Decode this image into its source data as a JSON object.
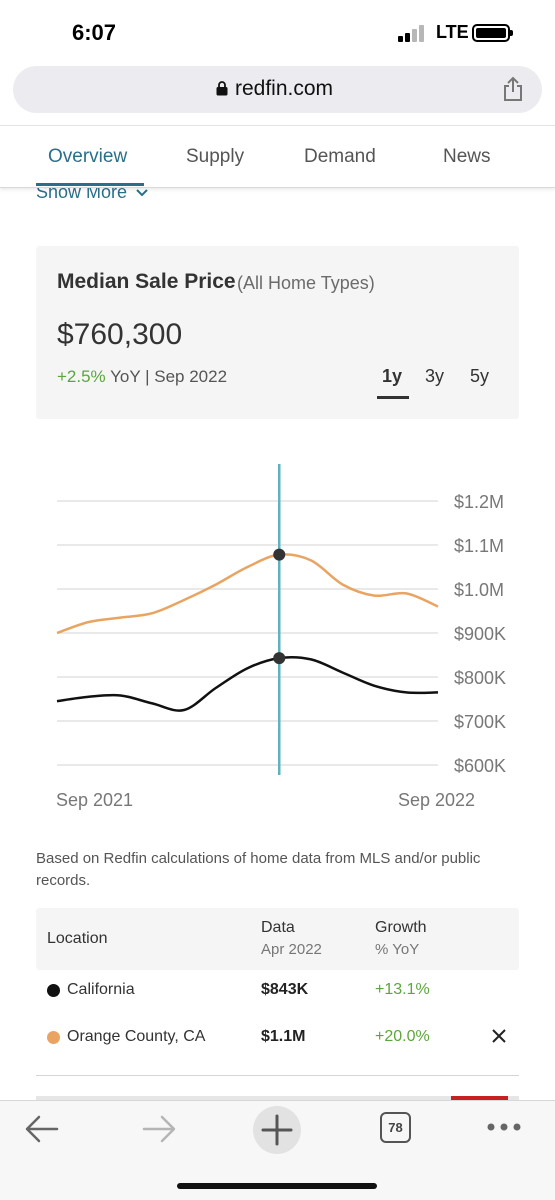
{
  "status_bar": {
    "time": "6:07",
    "network": "LTE"
  },
  "browser": {
    "url": "redfin.com",
    "tab_count": "78"
  },
  "tabs": [
    {
      "label": "Overview",
      "active": true
    },
    {
      "label": "Supply",
      "active": false
    },
    {
      "label": "Demand",
      "active": false
    },
    {
      "label": "News",
      "active": false
    }
  ],
  "show_more": "Show More",
  "summary": {
    "title": "Median Sale Price",
    "subtitle": "(All Home Types)",
    "price": "$760,300",
    "yoy_pct": "+2.5%",
    "yoy_rest": " YoY | Sep 2022",
    "ranges": [
      "1y",
      "3y",
      "5y"
    ],
    "active_range": "1y"
  },
  "chart_data": {
    "type": "line",
    "x_start_label": "Sep 2021",
    "x_end_label": "Sep 2022",
    "y_tick_labels": [
      "$1.2M",
      "$1.1M",
      "$1.0M",
      "$900K",
      "$800K",
      "$700K",
      "$600K"
    ],
    "ylim": [
      600000,
      1200000
    ],
    "grid": true,
    "highlight_index": 7,
    "series": [
      {
        "name": "Orange County, CA",
        "color": "#e9a462",
        "values": [
          900000,
          925000,
          935000,
          945000,
          975000,
          1010000,
          1050000,
          1078000,
          1065000,
          1010000,
          985000,
          990000,
          960000
        ]
      },
      {
        "name": "California",
        "color": "#111111",
        "values": [
          745000,
          755000,
          758000,
          740000,
          725000,
          775000,
          820000,
          843000,
          840000,
          810000,
          780000,
          765000,
          765000
        ]
      }
    ]
  },
  "source_note": "Based on Redfin calculations of home data from MLS and/or public records.",
  "table": {
    "headers": {
      "location": "Location",
      "data": "Data",
      "data_sub": "Apr 2022",
      "growth": "Growth",
      "growth_sub": "% YoY"
    },
    "rows": [
      {
        "location": "California",
        "value": "$843K",
        "growth": "+13.1%",
        "color": "#111111"
      },
      {
        "location": "Orange County, CA",
        "value": "$1.1M",
        "growth": "+20.0%",
        "color": "#e9a462"
      }
    ]
  },
  "colors": {
    "accent": "#2a6f8a",
    "positive": "#5ca63a",
    "cursor": "#5fb3bd"
  }
}
